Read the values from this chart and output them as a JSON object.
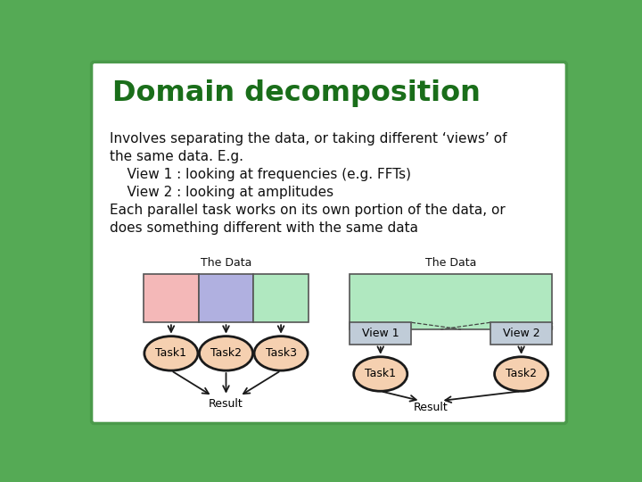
{
  "title": "Domain decomposition",
  "title_color": "#1a6e1a",
  "bg_color": "#ffffff",
  "border_color": "#4a9a4a",
  "outer_bg": "#55aa55",
  "body_text_lines": [
    [
      "Involves separating the data, or taking different ‘views’ of",
      false
    ],
    [
      "the same data. E.g.",
      false
    ],
    [
      "    View 1 : looking at frequencies (e.g. FFTs)",
      true
    ],
    [
      "    View 2 : looking at amplitudes",
      true
    ],
    [
      "Each parallel task works on its own portion of the data, or",
      false
    ],
    [
      "does something different with the same data",
      false
    ]
  ],
  "left_diagram": {
    "label": "The Data",
    "rect_colors": [
      "#f4b8b8",
      "#b0b0e0",
      "#b0e8c0"
    ],
    "tasks": [
      "Task1",
      "Task2",
      "Task3"
    ],
    "result": "Result"
  },
  "right_diagram": {
    "label": "The Data",
    "main_rect_color": "#b0e8c0",
    "view_rect_color": "#c0ccd8",
    "views": [
      "View 1",
      "View 2"
    ],
    "tasks": [
      "Task1",
      "Task2"
    ],
    "result": "Result"
  },
  "task_fill": "#f5d0b0",
  "task_edge": "#1a1a1a",
  "arrow_color": "#1a1a1a",
  "text_color": "#111111"
}
